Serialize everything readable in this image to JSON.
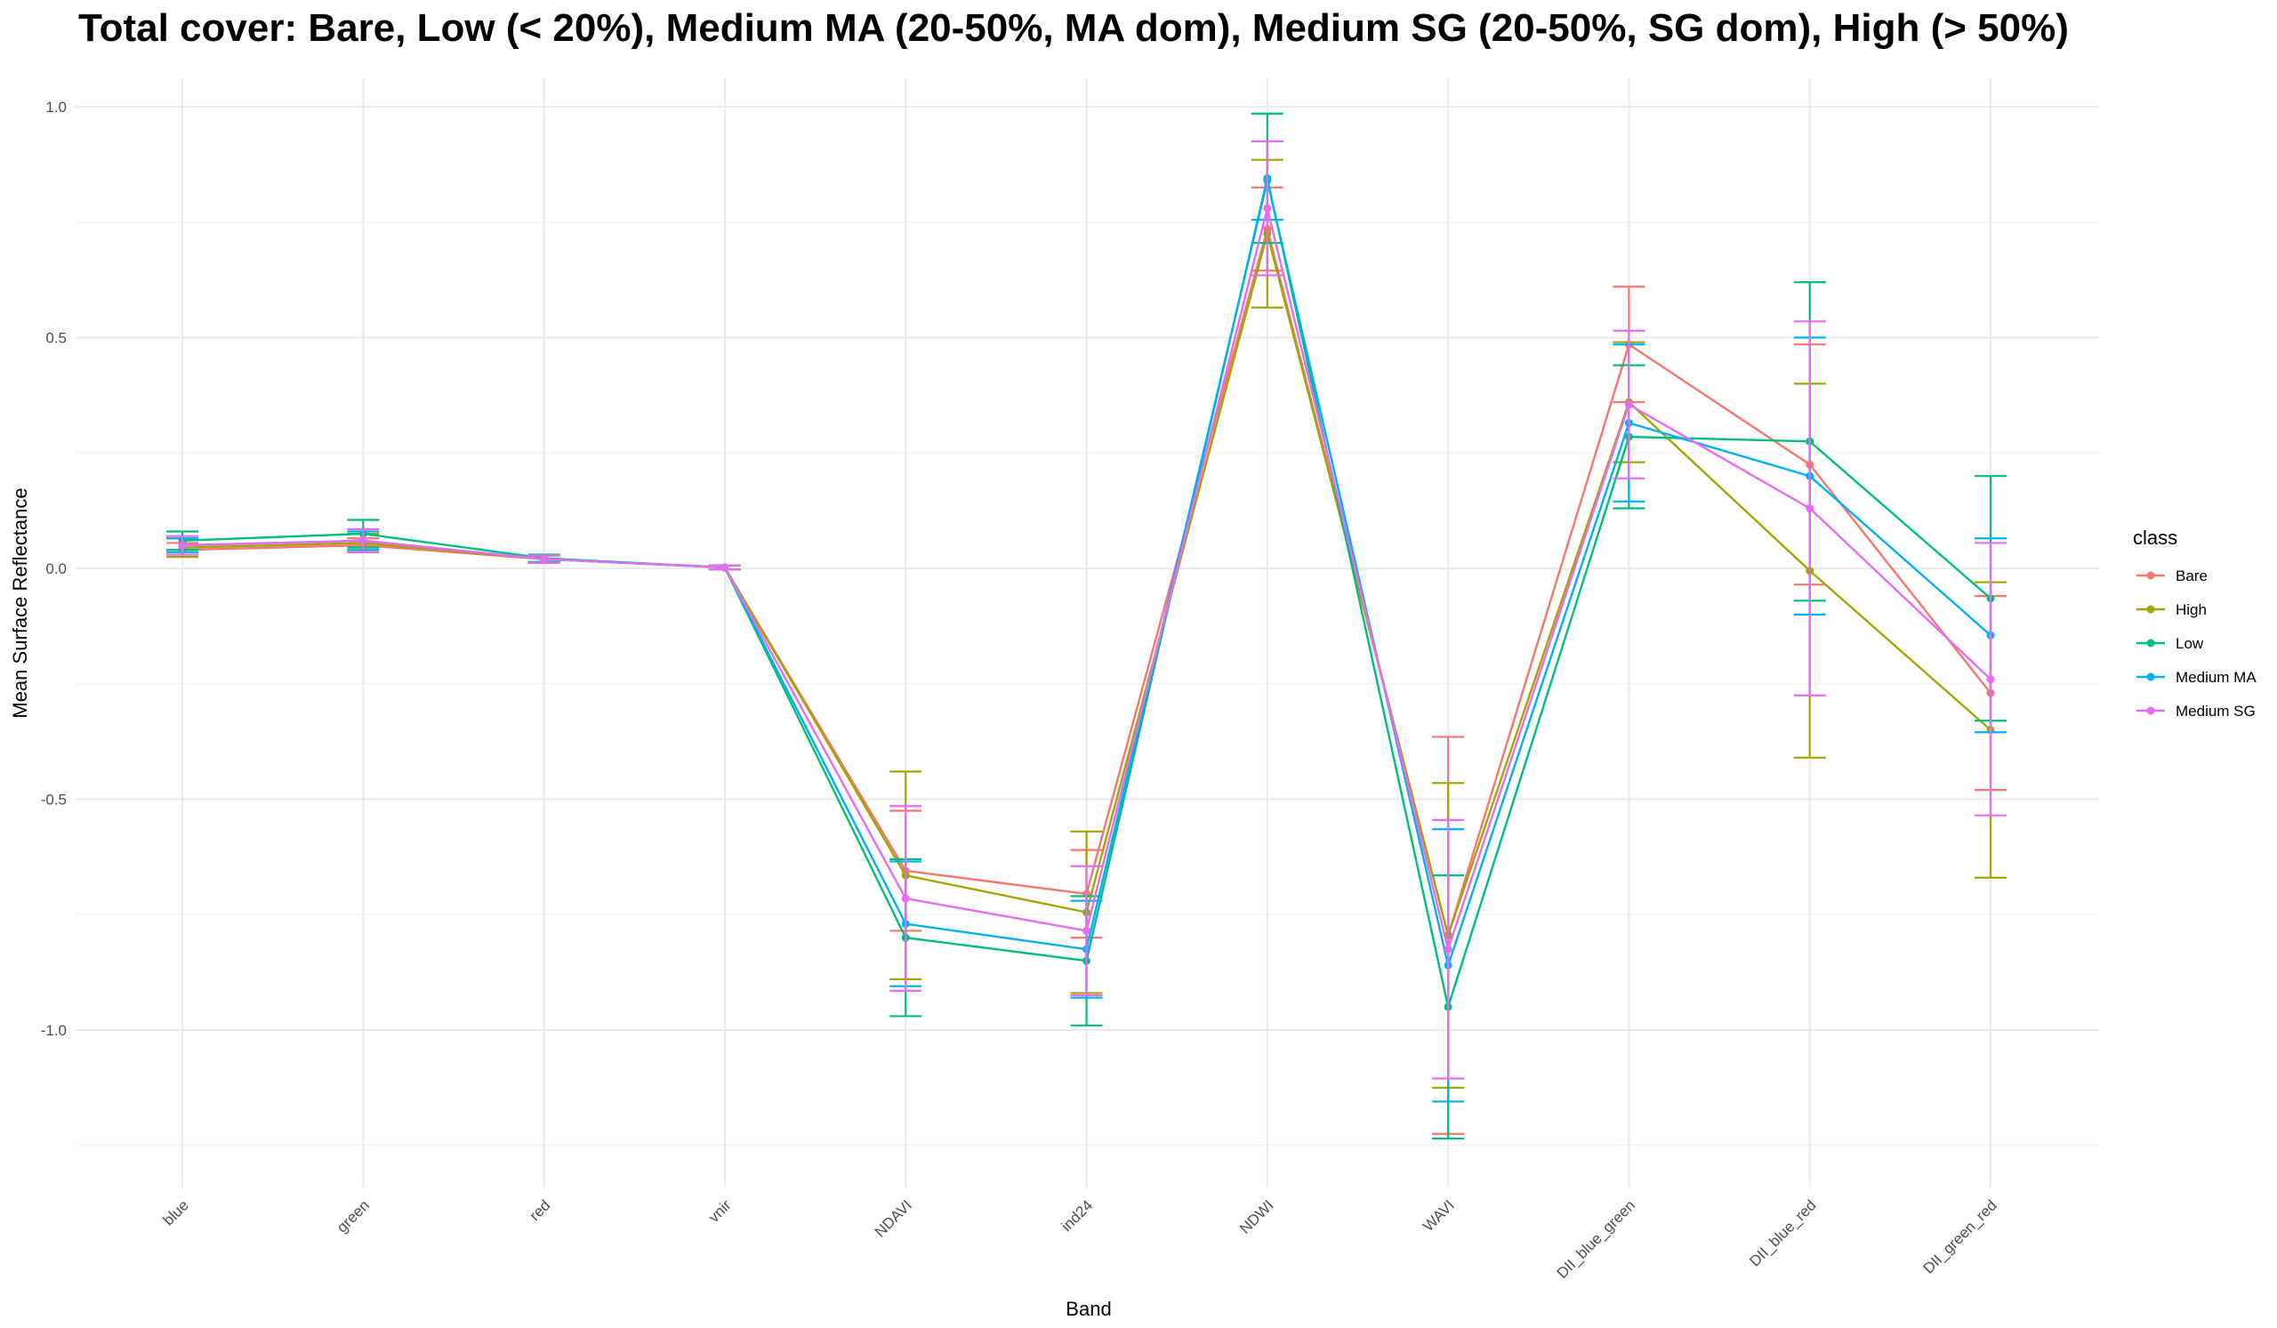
{
  "chart_data": {
    "type": "line",
    "title": "Total cover: Bare, Low (< 20%), Medium MA (20-50%, MA dom), Medium SG (20-50%, SG dom), High (> 50%)",
    "xlabel": "Band",
    "ylabel": "Mean Surface Reflectance",
    "ylim": [
      -1.35,
      1.05
    ],
    "yticks": [
      1.0,
      0.5,
      0.0,
      -0.5,
      -1.0
    ],
    "ytick_labels": [
      "1.0",
      "0.5",
      "0.0",
      "-0.5",
      "-1.0"
    ],
    "grid": true,
    "legend_title": "class",
    "legend_position": "right",
    "categories": [
      "blue",
      "green",
      "red",
      "vnir",
      "NDAVI",
      "ind24",
      "NDWI",
      "WAVI",
      "DII_blue_green",
      "DII_blue_red",
      "DII_green_red"
    ],
    "series": [
      {
        "name": "Bare",
        "color": "#F8766D",
        "values": [
          0.04,
          0.05,
          0.02,
          0.002,
          -0.655,
          -0.705,
          0.735,
          -0.795,
          0.485,
          0.225,
          -0.27
        ],
        "err": [
          0.015,
          0.015,
          0.008,
          0.004,
          0.13,
          0.095,
          0.09,
          0.43,
          0.125,
          0.26,
          0.21
        ]
      },
      {
        "name": "High",
        "color": "#A3A500",
        "values": [
          0.045,
          0.055,
          0.02,
          0.002,
          -0.665,
          -0.745,
          0.725,
          -0.795,
          0.36,
          -0.005,
          -0.35
        ],
        "err": [
          0.02,
          0.02,
          0.008,
          0.004,
          0.225,
          0.175,
          0.16,
          0.33,
          0.13,
          0.405,
          0.32
        ]
      },
      {
        "name": "Low",
        "color": "#00BF7D",
        "values": [
          0.06,
          0.075,
          0.022,
          0.002,
          -0.8,
          -0.85,
          0.845,
          -0.95,
          0.285,
          0.275,
          -0.065
        ],
        "err": [
          0.02,
          0.03,
          0.008,
          0.004,
          0.17,
          0.14,
          0.14,
          0.285,
          0.155,
          0.345,
          0.265
        ]
      },
      {
        "name": "Medium MA",
        "color": "#00B0F6",
        "values": [
          0.05,
          0.06,
          0.02,
          0.002,
          -0.77,
          -0.825,
          0.84,
          -0.86,
          0.315,
          0.2,
          -0.145
        ],
        "err": [
          0.015,
          0.02,
          0.008,
          0.004,
          0.135,
          0.105,
          0.085,
          0.295,
          0.17,
          0.3,
          0.21
        ]
      },
      {
        "name": "Medium SG",
        "color": "#E76BF3",
        "values": [
          0.05,
          0.06,
          0.02,
          0.002,
          -0.715,
          -0.785,
          0.78,
          -0.825,
          0.355,
          0.13,
          -0.24
        ],
        "err": [
          0.02,
          0.025,
          0.008,
          0.004,
          0.2,
          0.14,
          0.145,
          0.28,
          0.16,
          0.405,
          0.295
        ]
      }
    ]
  }
}
